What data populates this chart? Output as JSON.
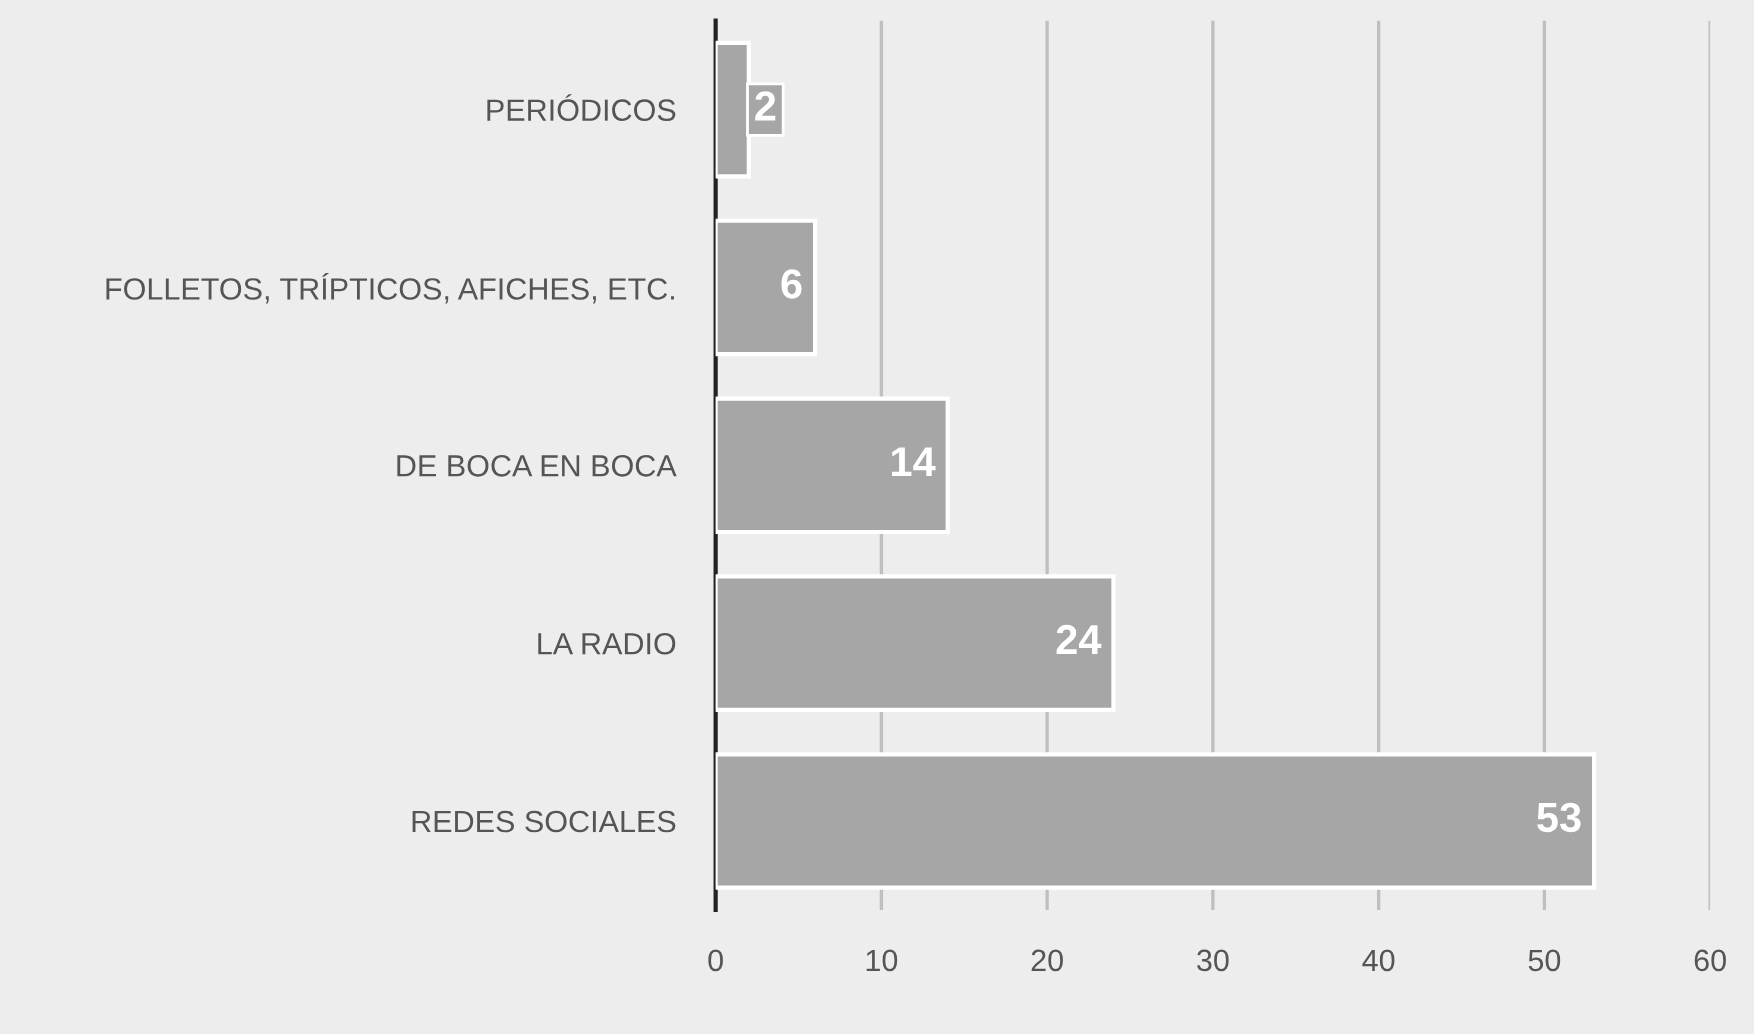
{
  "chart_data": {
    "type": "bar",
    "orientation": "horizontal",
    "categories": [
      "PERIÓDICOS",
      "FOLLETOS, TRÍPTICOS, AFICHES, ETC.",
      "DE BOCA EN BOCA",
      "LA RADIO",
      "REDES SOCIALES"
    ],
    "values": [
      2,
      6,
      14,
      24,
      53
    ],
    "color": "#a6a6a6",
    "data_labels": true,
    "xlim": [
      0,
      60
    ],
    "xticks": [
      0,
      10,
      20,
      30,
      40,
      50,
      60
    ],
    "grid": "x"
  }
}
